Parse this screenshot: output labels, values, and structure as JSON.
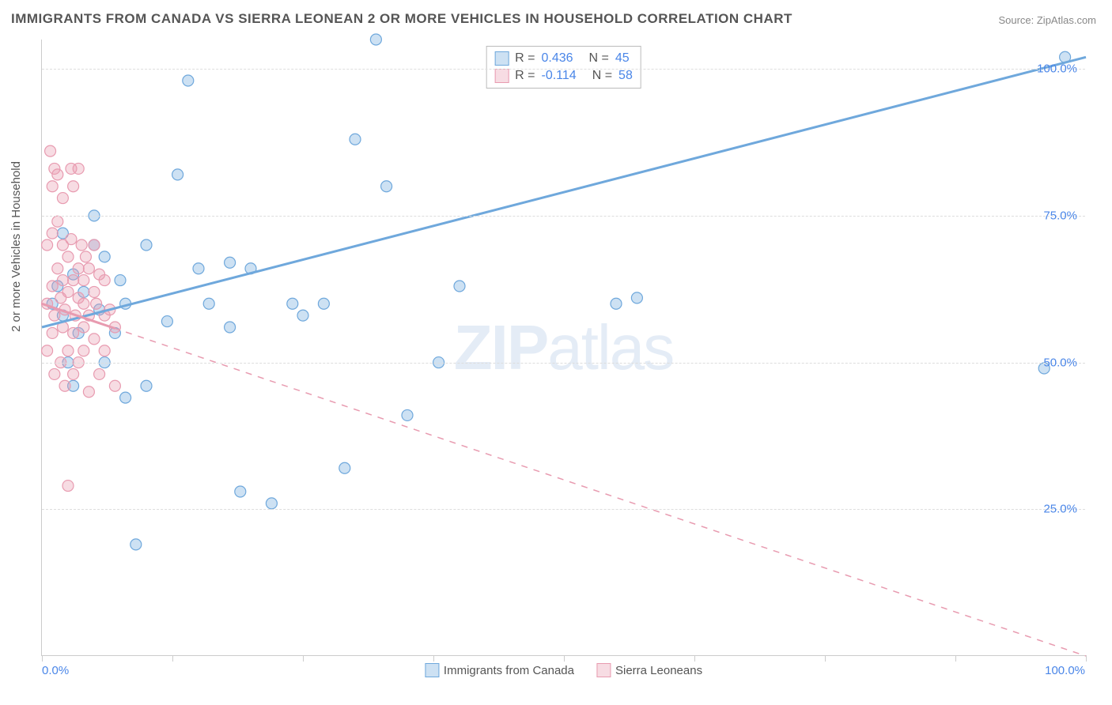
{
  "title": "IMMIGRANTS FROM CANADA VS SIERRA LEONEAN 2 OR MORE VEHICLES IN HOUSEHOLD CORRELATION CHART",
  "source": "Source: ZipAtlas.com",
  "ylabel": "2 or more Vehicles in Household",
  "watermark_bold": "ZIP",
  "watermark_rest": "atlas",
  "chart": {
    "type": "scatter",
    "xlim": [
      0,
      100
    ],
    "ylim": [
      0,
      105
    ],
    "background_color": "#ffffff",
    "grid_color": "#dddddd",
    "axis_color": "#cccccc",
    "tick_label_color": "#4a86e8",
    "label_fontsize": 15,
    "title_fontsize": 17,
    "marker_radius": 7,
    "marker_opacity": 0.5,
    "yticks": [
      25,
      50,
      75,
      100
    ],
    "ytick_labels": [
      "25.0%",
      "50.0%",
      "75.0%",
      "100.0%"
    ],
    "xtick_positions": [
      0,
      12.5,
      25,
      37.5,
      50,
      62.5,
      75,
      87.5,
      100
    ],
    "xaxis_start_label": "0.0%",
    "xaxis_end_label": "100.0%",
    "series": [
      {
        "name": "Immigrants from Canada",
        "color": "#6fa8dc",
        "fill": "rgba(111,168,220,0.35)",
        "R": "0.436",
        "N": "45",
        "regression": {
          "x1": 0,
          "y1": 56,
          "x2": 100,
          "y2": 102,
          "dash": false,
          "width": 3
        },
        "points": [
          [
            1,
            60
          ],
          [
            1.5,
            63
          ],
          [
            2,
            58
          ],
          [
            2,
            72
          ],
          [
            2.5,
            50
          ],
          [
            3,
            65
          ],
          [
            3,
            46
          ],
          [
            3.5,
            55
          ],
          [
            4,
            62
          ],
          [
            5,
            75
          ],
          [
            5,
            70
          ],
          [
            5.5,
            59
          ],
          [
            6,
            68
          ],
          [
            6,
            50
          ],
          [
            7,
            55
          ],
          [
            7.5,
            64
          ],
          [
            8,
            60
          ],
          [
            8,
            44
          ],
          [
            9,
            19
          ],
          [
            10,
            70
          ],
          [
            10,
            46
          ],
          [
            12,
            57
          ],
          [
            13,
            82
          ],
          [
            14,
            98
          ],
          [
            15,
            66
          ],
          [
            16,
            60
          ],
          [
            18,
            67
          ],
          [
            18,
            56
          ],
          [
            19,
            28
          ],
          [
            20,
            66
          ],
          [
            22,
            26
          ],
          [
            24,
            60
          ],
          [
            25,
            58
          ],
          [
            27,
            60
          ],
          [
            29,
            32
          ],
          [
            30,
            88
          ],
          [
            32,
            105
          ],
          [
            33,
            80
          ],
          [
            35,
            41
          ],
          [
            38,
            50
          ],
          [
            40,
            63
          ],
          [
            55,
            60
          ],
          [
            57,
            61
          ],
          [
            98,
            102
          ],
          [
            96,
            49
          ]
        ]
      },
      {
        "name": "Sierra Leoneans",
        "color": "#e89bb0",
        "fill": "rgba(232,155,176,0.35)",
        "R": "-0.114",
        "N": "58",
        "regression": {
          "x1": 0,
          "y1": 60,
          "x2": 100,
          "y2": 0,
          "dash": true,
          "width": 1.5
        },
        "regression_solid_segment": {
          "x1": 0,
          "y1": 60,
          "x2": 7,
          "y2": 55.8
        },
        "points": [
          [
            0.5,
            52
          ],
          [
            0.5,
            60
          ],
          [
            0.5,
            70
          ],
          [
            0.8,
            86
          ],
          [
            1,
            55
          ],
          [
            1,
            63
          ],
          [
            1,
            72
          ],
          [
            1,
            80
          ],
          [
            1.2,
            48
          ],
          [
            1.2,
            58
          ],
          [
            1.5,
            66
          ],
          [
            1.5,
            74
          ],
          [
            1.5,
            82
          ],
          [
            1.8,
            50
          ],
          [
            1.8,
            61
          ],
          [
            2,
            70
          ],
          [
            2,
            78
          ],
          [
            2,
            56
          ],
          [
            2,
            64
          ],
          [
            2.2,
            46
          ],
          [
            2.2,
            59
          ],
          [
            2.5,
            68
          ],
          [
            2.5,
            52
          ],
          [
            2.5,
            62
          ],
          [
            2.5,
            29
          ],
          [
            2.8,
            71
          ],
          [
            3,
            80
          ],
          [
            3,
            55
          ],
          [
            3,
            64
          ],
          [
            3,
            48
          ],
          [
            3.2,
            58
          ],
          [
            3.5,
            66
          ],
          [
            3.5,
            50
          ],
          [
            3.5,
            61
          ],
          [
            3.8,
            70
          ],
          [
            4,
            56
          ],
          [
            4,
            64
          ],
          [
            4,
            52
          ],
          [
            4,
            60
          ],
          [
            4.2,
            68
          ],
          [
            4.5,
            58
          ],
          [
            4.5,
            66
          ],
          [
            4.5,
            45
          ],
          [
            5,
            62
          ],
          [
            5,
            54
          ],
          [
            5,
            70
          ],
          [
            5.2,
            60
          ],
          [
            5.5,
            65
          ],
          [
            5.5,
            48
          ],
          [
            6,
            58
          ],
          [
            6,
            52
          ],
          [
            6,
            64
          ],
          [
            6.5,
            59
          ],
          [
            7,
            56
          ],
          [
            7,
            46
          ],
          [
            3.5,
            83
          ],
          [
            2.8,
            83
          ],
          [
            1.2,
            83
          ]
        ]
      }
    ]
  },
  "bottom_legend": [
    {
      "label": "Immigrants from Canada",
      "fill": "rgba(111,168,220,0.35)",
      "border": "#6fa8dc"
    },
    {
      "label": "Sierra Leoneans",
      "fill": "rgba(232,155,176,0.35)",
      "border": "#e89bb0"
    }
  ]
}
